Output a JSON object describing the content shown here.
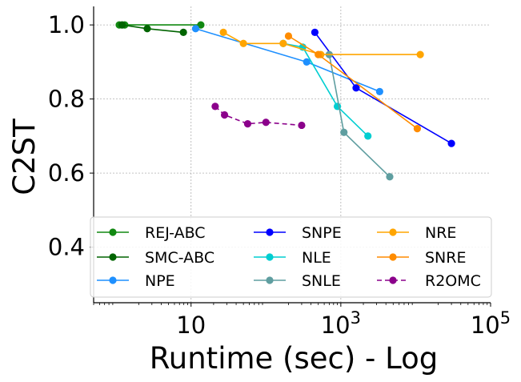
{
  "chart_data": {
    "type": "line",
    "title": "",
    "xlabel": "Runtime (sec) - Log",
    "ylabel": "C2ST",
    "xscale": "log",
    "xlim": [
      0.5,
      100000
    ],
    "ylim": [
      0.25,
      1.05
    ],
    "grid": true,
    "xticks": [
      {
        "value": 10,
        "base": "10",
        "exp": ""
      },
      {
        "value": 1000,
        "base": "10",
        "exp": "3"
      },
      {
        "value": 100000,
        "base": "10",
        "exp": "5"
      }
    ],
    "yticks": [
      {
        "value": 0.4,
        "label": "0.4"
      },
      {
        "value": 0.6,
        "label": "0.6"
      },
      {
        "value": 0.8,
        "label": "0.8"
      },
      {
        "value": 1.0,
        "label": "1.0"
      }
    ],
    "legend_position": "lower-center",
    "series": [
      {
        "name": "REJ-ABC",
        "color": "#118811",
        "dash": false,
        "x": [
          1.1,
          1.3,
          13.5
        ],
        "y": [
          1.0,
          1.0,
          1.0
        ]
      },
      {
        "name": "SMC-ABC",
        "color": "#006400",
        "dash": false,
        "x": [
          1.2,
          2.6,
          7.9
        ],
        "y": [
          1.0,
          0.99,
          0.98
        ]
      },
      {
        "name": "NPE",
        "color": "#1E90FF",
        "dash": false,
        "x": [
          11.5,
          350,
          3300
        ],
        "y": [
          0.99,
          0.9,
          0.82
        ]
      },
      {
        "name": "SNPE",
        "color": "#0000FF",
        "dash": false,
        "x": [
          450,
          1600,
          30000
        ],
        "y": [
          0.98,
          0.83,
          0.68
        ]
      },
      {
        "name": "NLE",
        "color": "#00CED1",
        "dash": false,
        "x": [
          170,
          310,
          900,
          2300
        ],
        "y": [
          0.95,
          0.94,
          0.78,
          0.7
        ]
      },
      {
        "name": "SNLE",
        "color": "#5F9EA0",
        "dash": false,
        "x": [
          700,
          1100,
          4500
        ],
        "y": [
          0.92,
          0.71,
          0.59
        ]
      },
      {
        "name": "NRE",
        "color": "#FFA500",
        "dash": false,
        "x": [
          27,
          50,
          170,
          540,
          11500
        ],
        "y": [
          0.98,
          0.95,
          0.95,
          0.92,
          0.92
        ]
      },
      {
        "name": "SNRE",
        "color": "#FF8C00",
        "dash": false,
        "x": [
          200,
          500,
          10500
        ],
        "y": [
          0.97,
          0.92,
          0.72
        ]
      },
      {
        "name": "R2OMC",
        "color": "#8B008B",
        "dash": true,
        "x": [
          21,
          28,
          57,
          100,
          300
        ],
        "y": [
          0.78,
          0.757,
          0.733,
          0.737,
          0.729
        ]
      }
    ]
  }
}
